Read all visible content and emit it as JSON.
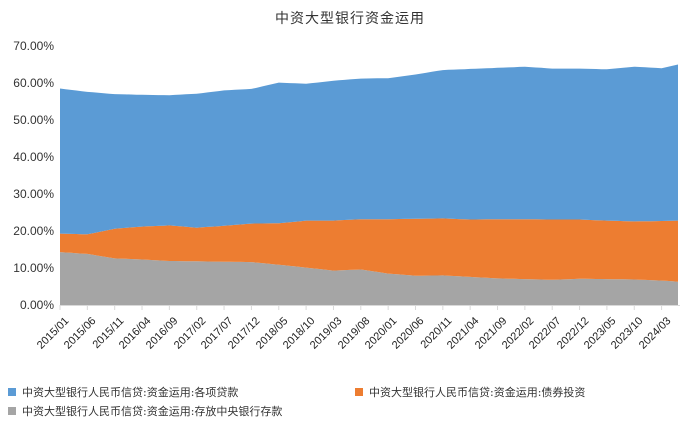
{
  "title": "中资大型银行资金运用",
  "colors": {
    "loans": "#5b9bd5",
    "bonds": "#ed7d31",
    "deposits_cb": "#a5a5a5"
  },
  "y_axis": {
    "ticks": [
      "70.00%",
      "60.00%",
      "50.00%",
      "40.00%",
      "30.00%",
      "20.00%",
      "10.00%",
      "0.00%"
    ]
  },
  "x_axis": {
    "ticks": [
      "2015/01",
      "2015/06",
      "2015/11",
      "2016/04",
      "2016/09",
      "2017/02",
      "2017/07",
      "2017/12",
      "2018/05",
      "2018/10",
      "2019/03",
      "2019/08",
      "2020/01",
      "2020/06",
      "2020/11",
      "2021/04",
      "2021/09",
      "2022/02",
      "2022/07",
      "2022/12",
      "2023/05",
      "2023/10",
      "2024/03"
    ]
  },
  "legend": [
    {
      "label": "中资大型银行人民币信贷:资金运用:各项贷款",
      "color": "#5b9bd5"
    },
    {
      "label": "中资大型银行人民币信贷:资金运用:债券投资",
      "color": "#ed7d31"
    },
    {
      "label": "中资大型银行人民币信贷:资金运用:存放中央银行存款",
      "color": "#a5a5a5"
    }
  ],
  "chart_data": {
    "type": "area",
    "stacked": true,
    "title": "中资大型银行资金运用",
    "xlabel": "",
    "ylabel": "",
    "ylim": [
      0,
      70
    ],
    "y_tick_format": "percent_2dp",
    "grid": false,
    "legend_position": "bottom",
    "x_start": "2015/01",
    "x_end": "2024/06",
    "frequency": "monthly",
    "keypoints_x": [
      "2015/01",
      "2015/06",
      "2015/11",
      "2016/04",
      "2016/09",
      "2017/02",
      "2017/07",
      "2017/12",
      "2018/05",
      "2018/10",
      "2019/03",
      "2019/08",
      "2020/01",
      "2020/06",
      "2020/11",
      "2021/04",
      "2021/09",
      "2022/02",
      "2022/07",
      "2022/12",
      "2023/05",
      "2023/10",
      "2024/03",
      "2024/06"
    ],
    "series": [
      {
        "name": "中资大型银行人民币信贷:资金运用:存放中央银行存款",
        "color": "#a5a5a5",
        "values": [
          14.3,
          13.8,
          12.6,
          12.3,
          11.9,
          11.8,
          11.7,
          11.6,
          10.9,
          10.1,
          9.3,
          9.6,
          8.5,
          7.9,
          8.0,
          7.6,
          7.2,
          7.0,
          6.8,
          7.1,
          7.0,
          6.9,
          6.6,
          6.3
        ]
      },
      {
        "name": "中资大型银行人民币信贷:资金运用:债券投资",
        "color": "#ed7d31",
        "values": [
          5.0,
          5.3,
          8.0,
          8.9,
          9.6,
          9.1,
          9.7,
          10.4,
          11.2,
          12.7,
          13.5,
          13.6,
          14.7,
          15.4,
          15.4,
          15.5,
          16.0,
          16.2,
          16.3,
          16.0,
          15.8,
          15.7,
          16.1,
          16.5
        ]
      },
      {
        "name": "中资大型银行人民币信贷:资金运用:各项贷款",
        "color": "#5b9bd5",
        "values": [
          39.2,
          38.5,
          36.4,
          35.6,
          35.2,
          36.2,
          36.6,
          36.4,
          38.0,
          37.0,
          37.8,
          38.0,
          38.1,
          39.0,
          40.1,
          40.7,
          40.9,
          41.2,
          40.8,
          40.8,
          40.9,
          41.8,
          41.3,
          42.2
        ]
      }
    ],
    "totals_approx": [
      58.5,
      57.6,
      57.0,
      56.8,
      56.7,
      57.1,
      58.0,
      58.4,
      60.1,
      59.8,
      60.6,
      61.2,
      61.3,
      62.3,
      63.5,
      63.8,
      64.1,
      64.4,
      63.9,
      63.9,
      63.7,
      64.4,
      64.0,
      65.0
    ]
  }
}
